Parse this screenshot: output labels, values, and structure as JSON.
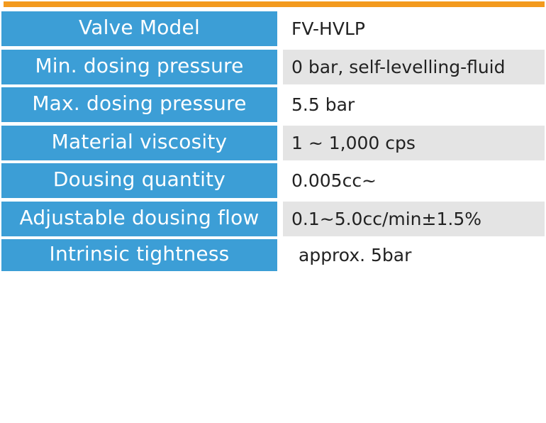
{
  "accent_colors": {
    "top_bar": "#f39a1e",
    "label_background": "#3c9ed6",
    "shaded_value_background": "#e4e4e4"
  },
  "specs": [
    {
      "label": "Valve Model",
      "value": "FV-HVLP"
    },
    {
      "label": "Min. dosing pressure",
      "value": "0 bar, self-levelling-fluid"
    },
    {
      "label": "Max. dosing pressure",
      "value": "5.5 bar"
    },
    {
      "label": "Material viscosity",
      "value": "1 ~ 1,000 cps"
    },
    {
      "label": "Dousing quantity",
      "value": "0.005cc~"
    },
    {
      "label": "Adjustable dousing flow",
      "value": "0.1~5.0cc/min±1.5%"
    },
    {
      "label": "Intrinsic tightness",
      "value": "approx. 5bar"
    }
  ]
}
